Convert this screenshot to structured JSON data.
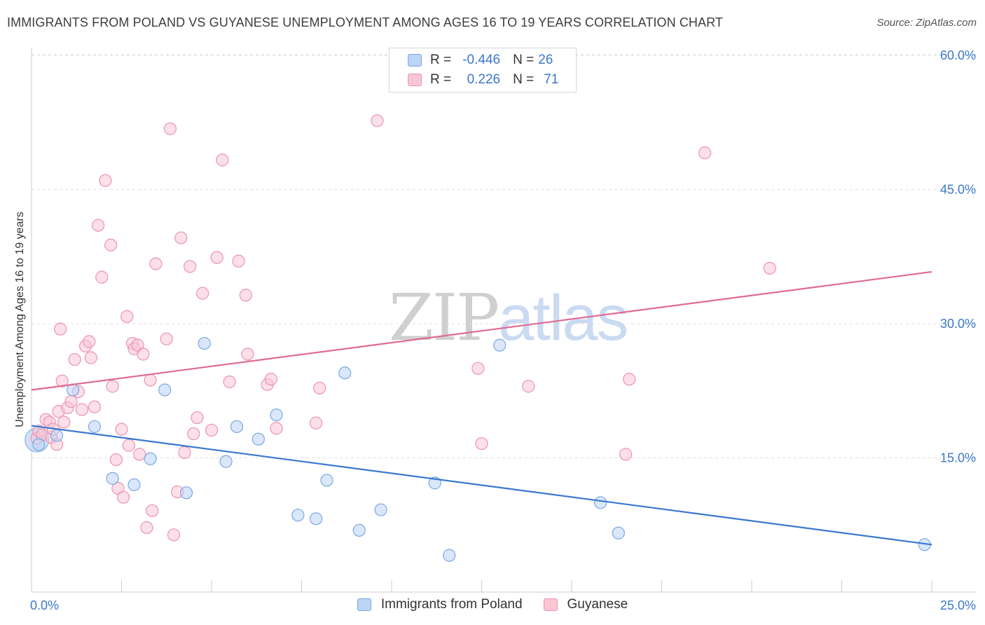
{
  "title": "IMMIGRANTS FROM POLAND VS GUYANESE UNEMPLOYMENT AMONG AGES 16 TO 19 YEARS CORRELATION CHART",
  "source": "Source: ZipAtlas.com",
  "watermark": {
    "zip": "ZIP",
    "atlas": "atlas"
  },
  "legend_top": [
    {
      "r_label": "R = ",
      "r_value": "-0.446",
      "n_label": "N = ",
      "n_value": "26"
    },
    {
      "r_label": "R = ",
      "r_value": "0.226",
      "n_label": "N = ",
      "n_value": "71"
    }
  ],
  "colors": {
    "poland_fill": "#bcd4f5",
    "poland_stroke": "#7aa8e0",
    "poland_line": "#3a78d0",
    "guyanese_fill": "#f9c6d5",
    "guyanese_stroke": "#eb93b0",
    "guyanese_line": "#e06a93",
    "axis_label": "#3a78c8"
  },
  "chart_data": {
    "type": "scatter",
    "xlabel": "",
    "ylabel": "Unemployment Among Ages 16 to 19 years",
    "xlim": [
      0,
      25
    ],
    "ylim": [
      0,
      60
    ],
    "x_tick_labels": [
      "0.0%",
      "25.0%"
    ],
    "y_ticks": [
      15,
      30,
      45,
      60
    ],
    "y_tick_labels": [
      "15.0%",
      "30.0%",
      "45.0%",
      "60.0%"
    ],
    "grid": true,
    "legend": "top-center and bottom",
    "series": [
      {
        "name": "Immigrants from Poland",
        "trend": {
          "x": [
            0,
            25
          ],
          "y": [
            18.6,
            5.3
          ]
        },
        "points": [
          [
            0.2,
            16.5
          ],
          [
            0.7,
            17.5
          ],
          [
            1.15,
            22.6
          ],
          [
            1.75,
            18.5
          ],
          [
            2.25,
            12.7
          ],
          [
            2.85,
            12.0
          ],
          [
            3.3,
            14.9
          ],
          [
            3.7,
            22.6
          ],
          [
            4.3,
            11.1
          ],
          [
            4.8,
            27.8
          ],
          [
            5.4,
            14.6
          ],
          [
            5.7,
            18.5
          ],
          [
            6.3,
            17.1
          ],
          [
            6.8,
            19.8
          ],
          [
            7.4,
            8.6
          ],
          [
            7.9,
            8.2
          ],
          [
            8.2,
            12.5
          ],
          [
            8.7,
            24.5
          ],
          [
            9.1,
            6.9
          ],
          [
            9.7,
            9.2
          ],
          [
            11.2,
            12.2
          ],
          [
            11.6,
            4.1
          ],
          [
            13.0,
            27.6
          ],
          [
            15.8,
            10.0
          ],
          [
            16.3,
            6.6
          ],
          [
            24.8,
            5.3
          ]
        ]
      },
      {
        "name": "Guyanese",
        "trend": {
          "x": [
            0,
            25
          ],
          "y": [
            22.6,
            35.8
          ]
        },
        "points": [
          [
            0.15,
            17.2
          ],
          [
            0.2,
            18.0
          ],
          [
            0.3,
            17.6
          ],
          [
            0.4,
            19.3
          ],
          [
            0.5,
            19.0
          ],
          [
            0.55,
            17.3
          ],
          [
            0.6,
            18.2
          ],
          [
            0.7,
            16.5
          ],
          [
            0.75,
            20.2
          ],
          [
            0.8,
            29.4
          ],
          [
            0.85,
            23.6
          ],
          [
            0.9,
            19.0
          ],
          [
            1.0,
            20.6
          ],
          [
            1.1,
            21.3
          ],
          [
            1.2,
            26.0
          ],
          [
            1.3,
            22.4
          ],
          [
            1.4,
            20.4
          ],
          [
            1.5,
            27.5
          ],
          [
            1.6,
            28.0
          ],
          [
            1.65,
            26.2
          ],
          [
            1.75,
            20.7
          ],
          [
            1.85,
            41.0
          ],
          [
            1.95,
            35.2
          ],
          [
            2.05,
            46.0
          ],
          [
            2.2,
            38.8
          ],
          [
            2.25,
            23.0
          ],
          [
            2.35,
            14.8
          ],
          [
            2.4,
            11.6
          ],
          [
            2.5,
            18.2
          ],
          [
            2.55,
            10.6
          ],
          [
            2.65,
            30.8
          ],
          [
            2.7,
            16.4
          ],
          [
            2.8,
            27.8
          ],
          [
            2.85,
            27.2
          ],
          [
            2.95,
            27.6
          ],
          [
            3.0,
            15.4
          ],
          [
            3.1,
            26.6
          ],
          [
            3.2,
            7.2
          ],
          [
            3.3,
            23.7
          ],
          [
            3.35,
            9.1
          ],
          [
            3.45,
            36.7
          ],
          [
            3.75,
            28.3
          ],
          [
            3.85,
            51.8
          ],
          [
            3.95,
            6.4
          ],
          [
            4.05,
            11.2
          ],
          [
            4.15,
            39.6
          ],
          [
            4.25,
            15.6
          ],
          [
            4.4,
            36.4
          ],
          [
            4.5,
            17.7
          ],
          [
            4.6,
            19.5
          ],
          [
            4.75,
            33.4
          ],
          [
            5.0,
            18.1
          ],
          [
            5.15,
            37.4
          ],
          [
            5.3,
            48.3
          ],
          [
            5.5,
            23.5
          ],
          [
            5.75,
            37.0
          ],
          [
            5.95,
            33.2
          ],
          [
            6.0,
            26.6
          ],
          [
            6.55,
            23.2
          ],
          [
            6.65,
            23.8
          ],
          [
            6.8,
            18.3
          ],
          [
            7.9,
            18.9
          ],
          [
            8.0,
            22.8
          ],
          [
            9.6,
            52.7
          ],
          [
            12.4,
            25.0
          ],
          [
            12.5,
            16.6
          ],
          [
            13.8,
            23.0
          ],
          [
            16.5,
            15.4
          ],
          [
            16.6,
            23.8
          ],
          [
            18.7,
            49.1
          ],
          [
            20.5,
            36.2
          ]
        ]
      }
    ]
  },
  "bottom_legend": [
    "Immigrants from Poland",
    "Guyanese"
  ]
}
